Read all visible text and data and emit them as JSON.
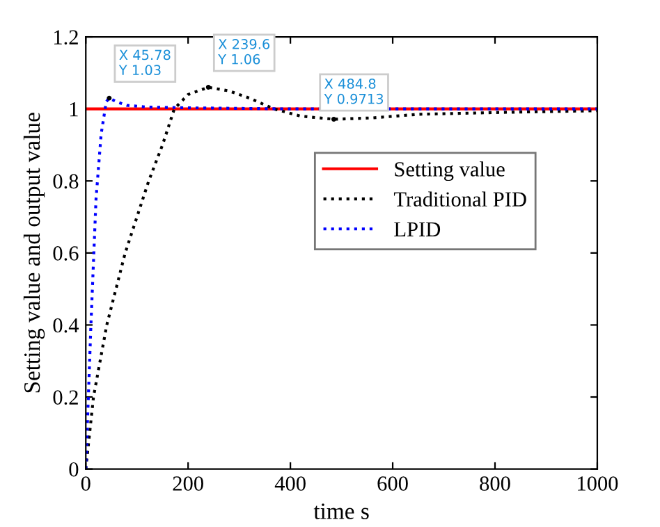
{
  "chart_data": {
    "type": "line",
    "xlabel": "time s",
    "ylabel": "Setting value and output value",
    "xlim": [
      0,
      1000
    ],
    "ylim": [
      0,
      1.2
    ],
    "xticks": [
      0,
      200,
      400,
      600,
      800,
      1000
    ],
    "yticks": [
      0,
      0.2,
      0.4,
      0.6,
      0.8,
      1,
      1.2
    ],
    "grid": false,
    "legend": "right",
    "marker": "none",
    "series": [
      {
        "name": "Setting value",
        "color": "#ff0000",
        "line_style": "solid",
        "x": [
          0,
          1000
        ],
        "values": [
          1,
          1
        ]
      },
      {
        "name": "Traditional PID",
        "color": "#000000",
        "line_style": "dotted",
        "x": [
          0,
          15,
          41,
          77,
          123,
          150,
          173,
          200,
          239.6,
          280,
          320,
          368,
          420,
          484.8,
          560,
          650,
          800,
          1000
        ],
        "values": [
          0,
          0.2,
          0.4,
          0.6,
          0.8,
          0.9,
          1.0,
          1.04,
          1.06,
          1.05,
          1.03,
          1.0,
          0.98,
          0.9713,
          0.975,
          0.985,
          0.99,
          0.995
        ]
      },
      {
        "name": "LPID",
        "color": "#0000ff",
        "line_style": "dotted",
        "x": [
          0,
          10,
          20,
          30,
          40,
          45.78,
          60,
          80,
          120,
          200,
          400,
          1000
        ],
        "values": [
          0,
          0.4,
          0.75,
          0.93,
          1.02,
          1.03,
          1.02,
          1.01,
          1.005,
          1.003,
          1.0,
          1.0
        ]
      }
    ],
    "annotations": [
      {
        "text": "X 45.78\nY 1.03",
        "x": 45.78,
        "y": 1.03
      },
      {
        "text": "X 239.6\nY 1.06",
        "x": 239.6,
        "y": 1.06
      },
      {
        "text": "X 484.8\nY 0.9713",
        "x": 484.8,
        "y": 0.9713
      }
    ]
  }
}
